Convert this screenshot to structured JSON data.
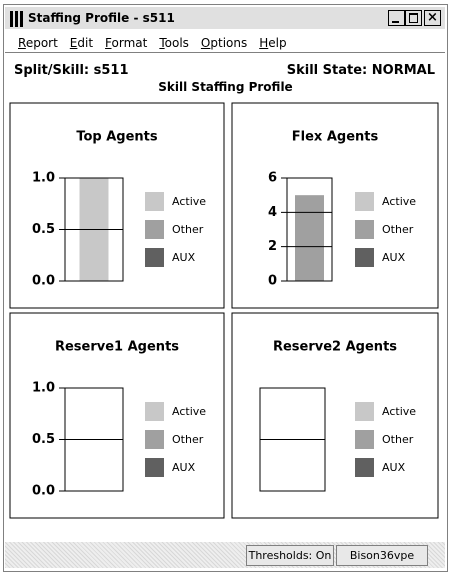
{
  "window": {
    "title": "Staffing Profile - s511",
    "menu": [
      "Report",
      "Edit",
      "Format",
      "Tools",
      "Options",
      "Help"
    ],
    "split_skill": "Split/Skill:  s511",
    "skill_state": "Skill State:  NORMAL",
    "subtitle": "Skill Staffing Profile",
    "status": [
      "Thresholds: On",
      "Bison36vpe"
    ]
  },
  "chart_data": [
    {
      "type": "bar",
      "title": "Top Agents",
      "categories": [
        null
      ],
      "series": [
        {
          "name": "Active",
          "color": "#c8c8c8",
          "values": [
            1
          ]
        },
        {
          "name": "Other",
          "color": "#a0a0a0",
          "values": [
            0
          ]
        },
        {
          "name": "AUX",
          "color": "#606060",
          "values": [
            0
          ]
        }
      ],
      "ylim": [
        0,
        1
      ],
      "yticks": [
        {
          "value": 0,
          "label": "0.0"
        },
        {
          "value": 0.5,
          "label": "0.5"
        },
        {
          "value": 1,
          "label": "1.0"
        }
      ],
      "grid": true
    },
    {
      "type": "bar",
      "title": "Flex Agents",
      "categories": [
        null
      ],
      "series": [
        {
          "name": "Active",
          "color": "#c8c8c8",
          "values": [
            0
          ]
        },
        {
          "name": "Other",
          "color": "#a0a0a0",
          "values": [
            5
          ]
        },
        {
          "name": "AUX",
          "color": "#606060",
          "values": [
            0
          ]
        }
      ],
      "ylim": [
        0,
        6
      ],
      "yticks": [
        0,
        2,
        4,
        6
      ],
      "grid": true
    },
    {
      "type": "bar",
      "title": "Reserve1 Agents",
      "categories": [
        null
      ],
      "series": [
        {
          "name": "Active",
          "color": "#c8c8c8",
          "values": [
            0
          ]
        },
        {
          "name": "Other",
          "color": "#a0a0a0",
          "values": [
            0
          ]
        },
        {
          "name": "AUX",
          "color": "#606060",
          "values": [
            0
          ]
        }
      ],
      "ylim": [
        0,
        1
      ],
      "yticks": [
        {
          "value": 0,
          "label": "0.0"
        },
        {
          "value": 0.5,
          "label": "0.5"
        },
        {
          "value": 1,
          "label": "1.0"
        }
      ],
      "grid": true
    },
    {
      "type": "bar",
      "title": "Reserve2 Agents",
      "categories": [
        null
      ],
      "series": [
        {
          "name": "Active",
          "color": "#c8c8c8",
          "values": [
            0
          ]
        },
        {
          "name": "Other",
          "color": "#a0a0a0",
          "values": [
            0
          ]
        },
        {
          "name": "AUX",
          "color": "#606060",
          "values": [
            0
          ]
        }
      ],
      "ylim": [
        0,
        1
      ],
      "yticks": [],
      "grid": true
    }
  ]
}
